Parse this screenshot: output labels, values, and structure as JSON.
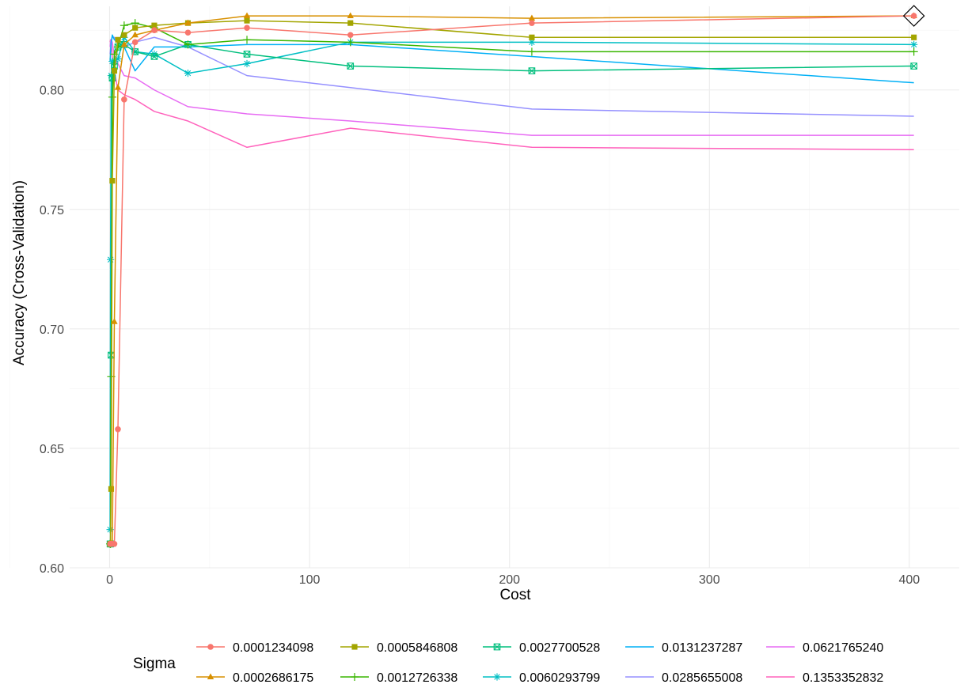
{
  "chart_data": {
    "type": "line",
    "title": "",
    "xlabel": "Cost",
    "ylabel": "Accuracy (Cross-Validation)",
    "xlim": [
      -20,
      425
    ],
    "ylim": [
      0.6,
      0.835
    ],
    "x_ticks": [
      0,
      100,
      200,
      300,
      400
    ],
    "x_tick_labels": [
      "0",
      "100",
      "200",
      "300",
      "400"
    ],
    "y_ticks": [
      0.6,
      0.65,
      0.7,
      0.75,
      0.8
    ],
    "y_tick_labels": [
      "0.60",
      "0.65",
      "0.70",
      "0.75",
      "0.80"
    ],
    "grid": true,
    "legend": {
      "title": "Sigma",
      "position": "bottom"
    },
    "x": [
      0.25,
      0.4384,
      0.7688,
      1.348,
      2.3636,
      4.1444,
      7.2668,
      12.7418,
      22.3418,
      39.1749,
      68.6898,
      120.4411,
      211.1822,
      402.2955
    ],
    "best": {
      "x": 402.2955,
      "y": 0.831,
      "marker": "open-diamond"
    },
    "series": [
      {
        "name": "0.0001234098",
        "color": "#F8766D",
        "shape": "circle",
        "values": [
          0.61,
          0.61,
          0.61,
          0.61,
          0.61,
          0.658,
          0.796,
          0.82,
          0.825,
          0.824,
          0.826,
          0.823,
          0.828,
          0.831
        ]
      },
      {
        "name": "0.0002686175",
        "color": "#D89000",
        "shape": "triangle",
        "values": [
          0.61,
          0.61,
          0.61,
          0.61,
          0.703,
          0.801,
          0.819,
          0.823,
          0.825,
          0.828,
          0.831,
          0.831,
          0.83,
          0.831
        ]
      },
      {
        "name": "0.0005846808",
        "color": "#A3A500",
        "shape": "square",
        "values": [
          0.61,
          0.61,
          0.633,
          0.762,
          0.808,
          0.821,
          0.823,
          0.826,
          0.827,
          0.828,
          0.829,
          0.828,
          0.822,
          0.822
        ]
      },
      {
        "name": "0.0012726338",
        "color": "#39B600",
        "shape": "plus",
        "values": [
          0.61,
          0.61,
          0.68,
          0.797,
          0.815,
          0.818,
          0.827,
          0.828,
          0.826,
          0.819,
          0.821,
          0.82,
          0.816,
          0.816
        ]
      },
      {
        "name": "0.0027700528",
        "color": "#00BF7D",
        "shape": "square-x",
        "values": [
          0.61,
          0.61,
          0.689,
          0.805,
          0.81,
          0.818,
          0.819,
          0.816,
          0.814,
          0.819,
          0.815,
          0.81,
          0.808,
          0.81
        ]
      },
      {
        "name": "0.0060293799",
        "color": "#00BFC4",
        "shape": "asterisk",
        "values": [
          0.616,
          0.729,
          0.806,
          0.812,
          0.812,
          0.813,
          0.822,
          0.816,
          0.815,
          0.807,
          0.811,
          0.82,
          0.82,
          0.819
        ]
      },
      {
        "name": "0.0131237287",
        "color": "#00B0F6",
        "shape": "none",
        "values": [
          0.812,
          0.815,
          0.82,
          0.823,
          0.821,
          0.82,
          0.818,
          0.808,
          0.818,
          0.818,
          0.819,
          0.819,
          0.814,
          0.803
        ]
      },
      {
        "name": "0.0285655008",
        "color": "#9590FF",
        "shape": "none",
        "values": [
          0.815,
          0.817,
          0.82,
          0.822,
          0.822,
          0.82,
          0.818,
          0.82,
          0.822,
          0.818,
          0.806,
          0.801,
          0.792,
          0.789
        ]
      },
      {
        "name": "0.0621765240",
        "color": "#E76BF3",
        "shape": "none",
        "values": [
          0.818,
          0.82,
          0.821,
          0.82,
          0.814,
          0.811,
          0.806,
          0.805,
          0.8,
          0.793,
          0.79,
          0.787,
          0.781,
          0.781
        ]
      },
      {
        "name": "0.1353352832",
        "color": "#FF62BC",
        "shape": "none",
        "values": [
          0.82,
          0.821,
          0.82,
          0.814,
          0.808,
          0.8,
          0.798,
          0.796,
          0.791,
          0.787,
          0.776,
          0.784,
          0.776,
          0.775
        ]
      }
    ]
  }
}
